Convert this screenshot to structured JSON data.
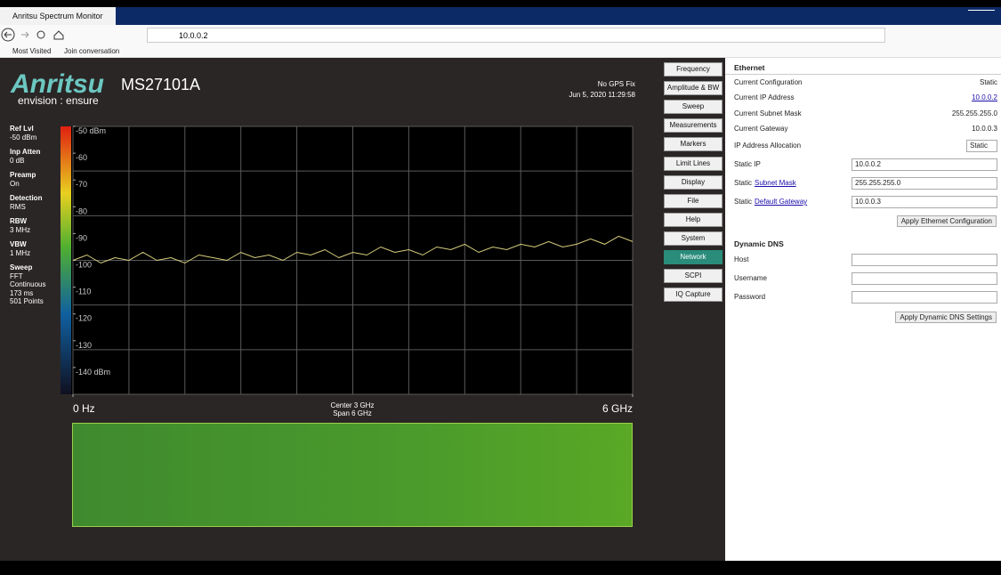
{
  "browser": {
    "tab_title": "Anritsu Spectrum Monitor",
    "url": "10.0.0.2",
    "bookmarks": [
      "Most Visited",
      "Join conversation"
    ]
  },
  "header": {
    "logo": "Anritsu",
    "tagline": "envision : ensure",
    "model": "MS27101A",
    "gps_status": "No GPS Fix",
    "timestamp": "Jun 5, 2020 11:29:58"
  },
  "settings": [
    {
      "label": "Ref Lvl",
      "lines": [
        "-50 dBm"
      ]
    },
    {
      "label": "Inp Atten",
      "lines": [
        "0 dB"
      ]
    },
    {
      "label": "Preamp",
      "lines": [
        "On"
      ]
    },
    {
      "label": "Detection",
      "lines": [
        "RMS"
      ]
    },
    {
      "label": "RBW",
      "lines": [
        "3 MHz"
      ]
    },
    {
      "label": "VBW",
      "lines": [
        "1 MHz"
      ]
    },
    {
      "label": "Sweep",
      "lines": [
        "FFT",
        "Continuous",
        "173 ms",
        "501 Points"
      ]
    }
  ],
  "chart_data": {
    "type": "line",
    "x": [
      0,
      0.15,
      0.3,
      0.45,
      0.6,
      0.75,
      0.9,
      1.05,
      1.2,
      1.35,
      1.5,
      1.65,
      1.8,
      1.95,
      2.1,
      2.25,
      2.4,
      2.55,
      2.7,
      2.85,
      3.0,
      3.15,
      3.3,
      3.45,
      3.6,
      3.75,
      3.9,
      4.05,
      4.2,
      4.35,
      4.5,
      4.65,
      4.8,
      4.95,
      5.1,
      5.25,
      5.4,
      5.55,
      5.7,
      5.85,
      6.0
    ],
    "values": [
      -100,
      -98,
      -101,
      -99,
      -100,
      -97,
      -100,
      -99,
      -101,
      -98,
      -99,
      -100,
      -97,
      -99,
      -98,
      -100,
      -97,
      -98,
      -96,
      -99,
      -97,
      -98,
      -95,
      -97,
      -96,
      -98,
      -95,
      -96,
      -94,
      -97,
      -95,
      -96,
      -94,
      -95,
      -93,
      -95,
      -94,
      -92,
      -94,
      -91,
      -93
    ],
    "color": "#d8d07e",
    "xlim": [
      0,
      6
    ],
    "xticks": [
      {
        "value": 0,
        "label": "0 Hz"
      },
      {
        "value": 6,
        "label": "6 GHz"
      }
    ],
    "ylim": [
      -150,
      -50
    ],
    "yticks": [
      {
        "value": -50,
        "label": "-50 dBm"
      },
      -60,
      -70,
      -80,
      -90,
      -100,
      -110,
      -120,
      -130,
      {
        "value": -140,
        "label": "-140 dBm"
      }
    ],
    "center_label": "Center 3 GHz",
    "span_label": "Span 6 GHz"
  },
  "menu": [
    {
      "label": "Frequency"
    },
    {
      "label": "Amplitude & BW"
    },
    {
      "label": "Sweep"
    },
    {
      "label": "Measurements"
    },
    {
      "label": "Markers"
    },
    {
      "label": "Limit Lines"
    },
    {
      "label": "Display"
    },
    {
      "label": "File"
    },
    {
      "label": "Help"
    },
    {
      "label": "System"
    },
    {
      "label": "Network",
      "selected": true
    },
    {
      "label": "SCPI"
    },
    {
      "label": "IQ Capture"
    }
  ],
  "ethernet": {
    "title": "Ethernet",
    "rows": [
      {
        "label": "Current Configuration",
        "value": "Static"
      },
      {
        "label": "Current IP Address",
        "value": "10.0.0.2",
        "link": true
      },
      {
        "label": "Current Subnet Mask",
        "value": "255.255.255.0"
      },
      {
        "label": "Current Gateway",
        "value": "10.0.0.3"
      },
      {
        "label": "IP Address Allocation",
        "select": "Static"
      },
      {
        "label": "Static IP",
        "input": "10.0.0.2"
      },
      {
        "label": "Static",
        "link_text": "Subnet Mask",
        "input": "255.255.255.0"
      },
      {
        "label": "Static",
        "link_text": "Default Gateway",
        "input": "10.0.0.3"
      }
    ],
    "button": "Apply Ethernet Configuration"
  },
  "dynamic_dns": {
    "title": "Dynamic DNS",
    "rows": [
      {
        "label": "Host"
      },
      {
        "label": "Username"
      },
      {
        "label": "Password"
      }
    ],
    "button": "Apply Dynamic DNS Settings"
  }
}
